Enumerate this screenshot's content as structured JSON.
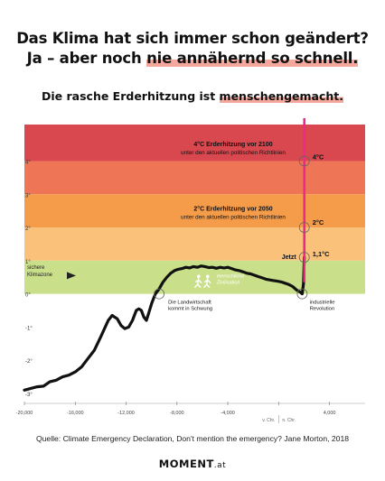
{
  "headline": {
    "line1": "Das Klima hat sich immer schon geändert?",
    "line2_plain": "Ja – aber noch ",
    "line2_highlight": "nie annähernd so schnell."
  },
  "subheadline": {
    "plain": "Die rasche Erderhitzung ist ",
    "highlight": "menschengemacht."
  },
  "colors": {
    "band_4": "#d9474f",
    "band_3": "#ef7557",
    "band_2": "#f59c4b",
    "band_1": "#f9c17a",
    "band_safe": "#c9df8a",
    "now_line": "#ec2a8a",
    "curve": "#111111",
    "highlight": "#f4a79c"
  },
  "chart_data": {
    "type": "line",
    "xlim": [
      -20000,
      6800
    ],
    "ylim": [
      -3.3,
      5.1
    ],
    "x_ticks": [
      -20000,
      -16000,
      -12000,
      -8000,
      -4000,
      0,
      4000
    ],
    "x_tick_labels": [
      "-20,000",
      "-16,000",
      "-12,000",
      "-8,000",
      "-4,000",
      "",
      "4,000"
    ],
    "era_labels": [
      "v. Chr.",
      "n. Chr."
    ],
    "y_ticks": [
      4,
      3,
      2,
      1,
      0,
      -1,
      -2,
      -3
    ],
    "y_tick_labels": [
      "4°",
      "3°",
      "2°",
      "1°",
      "0°",
      "-1°",
      "-2°",
      "-3°"
    ],
    "bands": [
      {
        "from": 4,
        "to": 5.1,
        "color": "#d9474f"
      },
      {
        "from": 3,
        "to": 4,
        "color": "#ef7557"
      },
      {
        "from": 2,
        "to": 3,
        "color": "#f59c4b"
      },
      {
        "from": 1,
        "to": 2,
        "color": "#f9c17a"
      },
      {
        "from": 0,
        "to": 1,
        "color": "#c9df8a"
      }
    ],
    "series": [
      {
        "x": [
          -20000,
          -19500,
          -19000,
          -18500,
          -18000,
          -17500,
          -17000,
          -16500,
          -16000,
          -15500,
          -15000,
          -14500,
          -14000,
          -13700,
          -13400,
          -13100,
          -12900,
          -12700,
          -12400,
          -12100,
          -11800,
          -11500,
          -11200,
          -11000,
          -10800,
          -10600,
          -10400,
          -10200,
          -10000,
          -9700,
          -9400,
          -9100,
          -8800,
          -8500,
          -8200,
          -7900,
          -7600,
          -7300,
          -7000,
          -6700,
          -6400,
          -6100,
          -5800,
          -5500,
          -5200,
          -4900,
          -4600,
          -4300,
          -4000,
          -3700,
          -3400,
          -3100,
          -2800,
          -2500,
          -2200,
          -1900,
          -1600,
          -1300,
          -1000,
          -700,
          -400,
          -100,
          200,
          500,
          800,
          1100,
          1400,
          1700,
          1850,
          1950,
          2018
        ],
        "y": [
          -2.9,
          -2.85,
          -2.8,
          -2.78,
          -2.65,
          -2.6,
          -2.5,
          -2.45,
          -2.35,
          -2.2,
          -1.95,
          -1.7,
          -1.3,
          -1.05,
          -0.8,
          -0.65,
          -0.7,
          -0.75,
          -0.95,
          -1.05,
          -1.0,
          -0.8,
          -0.5,
          -0.45,
          -0.5,
          -0.7,
          -0.8,
          -0.55,
          -0.3,
          0.0,
          0.15,
          0.35,
          0.5,
          0.62,
          0.7,
          0.74,
          0.76,
          0.8,
          0.78,
          0.82,
          0.8,
          0.84,
          0.82,
          0.79,
          0.8,
          0.77,
          0.8,
          0.78,
          0.8,
          0.76,
          0.72,
          0.7,
          0.66,
          0.62,
          0.6,
          0.56,
          0.52,
          0.48,
          0.44,
          0.42,
          0.4,
          0.38,
          0.36,
          0.32,
          0.28,
          0.22,
          0.12,
          0.05,
          0.0,
          0.3,
          1.1
        ]
      }
    ],
    "now_line_x": 2018,
    "markers": [
      {
        "x": -9400,
        "y": 0.0,
        "label": "Die Landwirtschaft kommt in Schwung"
      },
      {
        "x": 1850,
        "y": 0.0,
        "label": "industrielle Revolution"
      },
      {
        "x": 2018,
        "y": 1.1,
        "label": "1,1°C",
        "side_label": "Jetzt"
      },
      {
        "x": 2018,
        "y": 2.0,
        "label": "2°C",
        "side_label": "2°C Erderhitzung vor 2050 unter den aktuellen politischen Richtlinien"
      },
      {
        "x": 2018,
        "y": 4.0,
        "label": "4°C",
        "side_label": "4°C Erderhitzung vor 2100 unter den aktuellen politischen Richtlinien"
      }
    ],
    "annotations": {
      "safe_zone": "sichere Klimazone",
      "civilisation": "menschliche Zivilisation",
      "warming_4": [
        "4°C Erderhitzung vor 2100",
        "unter den aktuellen politischen Richtlinien"
      ],
      "warming_2": [
        "2°C Erderhitzung vor 2050",
        "unter den aktuellen politischen Richtlinien"
      ],
      "jetzt": "Jetzt",
      "value_4": "4°C",
      "value_2": "2°C",
      "value_now": "1,1°C",
      "agriculture": [
        "Die Landwirtschaft",
        "kommt in Schwung"
      ],
      "industrial": [
        "industrielle",
        "Revolution"
      ]
    }
  },
  "source": "Quelle: Climate Emergency Declaration, Don't mention the emergency? Jane Morton, 2018",
  "logo": {
    "main": "MOMENT",
    "suffix": ".at"
  }
}
